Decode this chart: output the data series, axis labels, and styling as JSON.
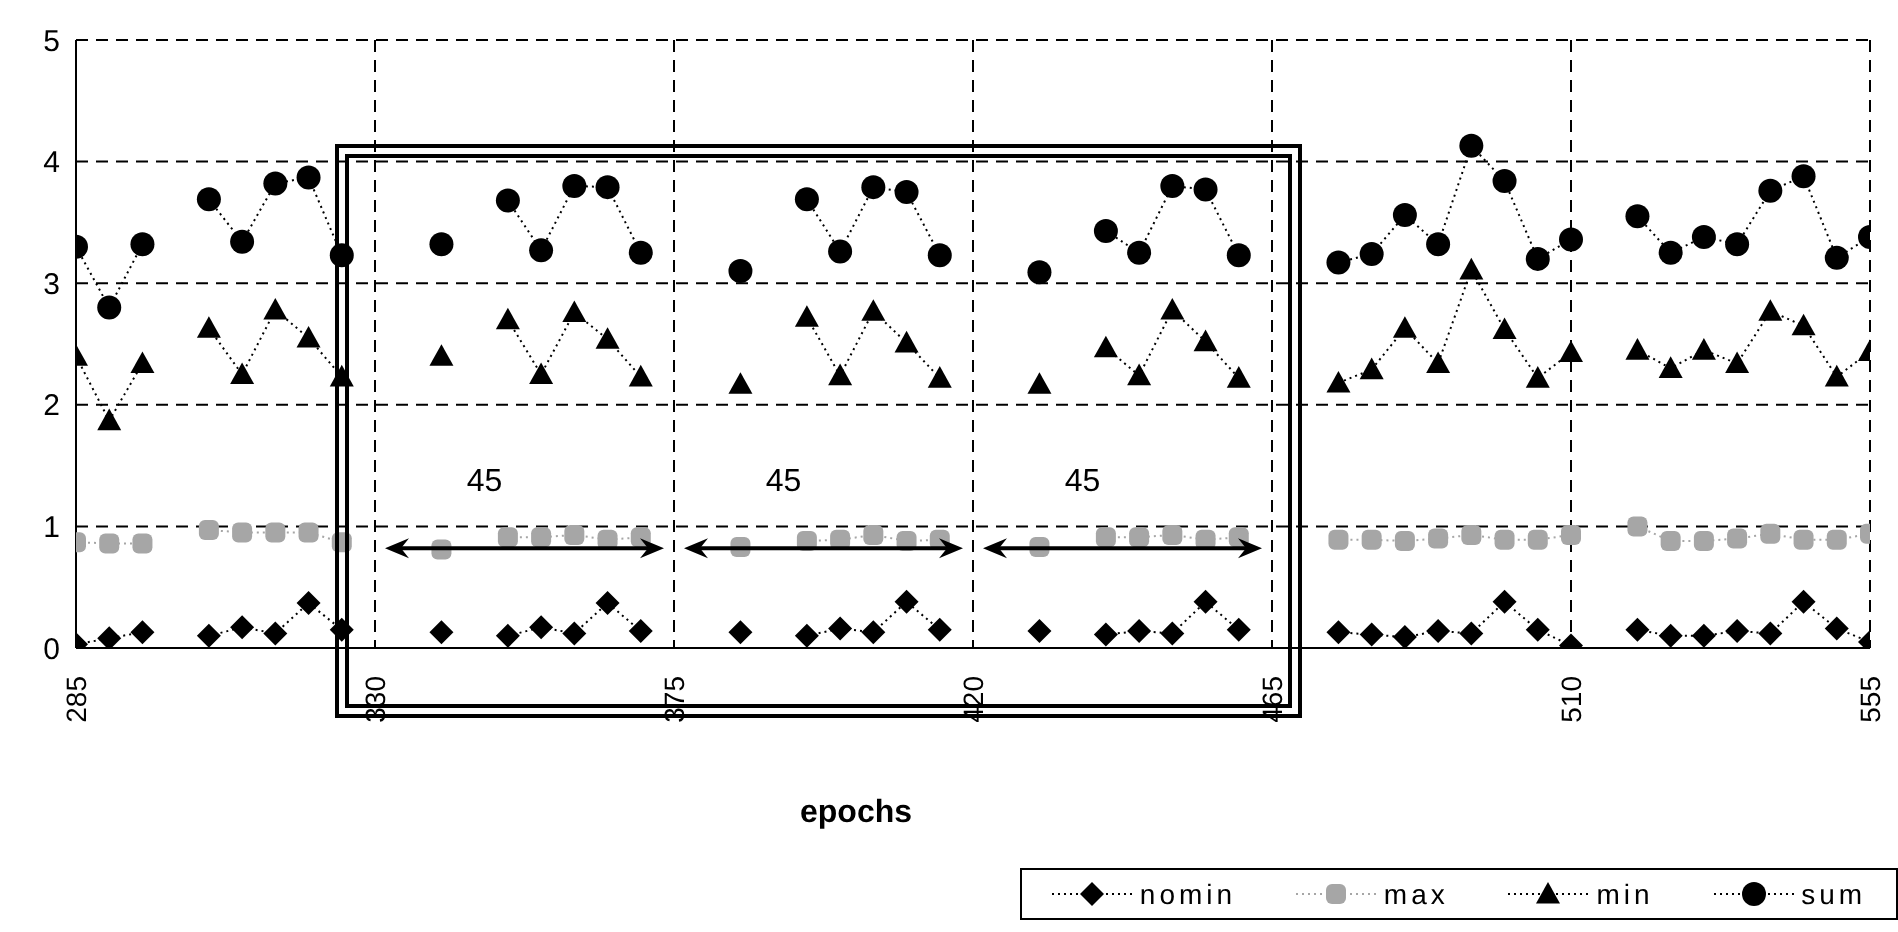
{
  "chart_data": {
    "type": "line",
    "xlabel": "epochs",
    "x": [
      285,
      290,
      295,
      300,
      305,
      310,
      315,
      320,
      325,
      330,
      335,
      340,
      345,
      350,
      355,
      360,
      365,
      370,
      375,
      380,
      385,
      390,
      395,
      400,
      405,
      410,
      415,
      420,
      425,
      430,
      435,
      440,
      445,
      450,
      455,
      460,
      465,
      470,
      475,
      480,
      485,
      490,
      495,
      500,
      505,
      510,
      515,
      520,
      525,
      530,
      535,
      540,
      545,
      550,
      555
    ],
    "series": [
      {
        "name": "nomin",
        "color": "#000000",
        "marker": "diamond",
        "values": [
          0.03,
          0.08,
          0.13,
          null,
          0.1,
          0.17,
          0.12,
          0.37,
          0.15,
          null,
          null,
          0.13,
          null,
          0.1,
          0.17,
          0.12,
          0.37,
          0.14,
          null,
          null,
          0.13,
          null,
          0.1,
          0.16,
          0.13,
          0.38,
          0.15,
          null,
          null,
          0.14,
          null,
          0.11,
          0.14,
          0.12,
          0.38,
          0.15,
          null,
          null,
          0.13,
          0.11,
          0.09,
          0.14,
          0.12,
          0.38,
          0.15,
          0.02,
          null,
          0.15,
          0.1,
          0.1,
          0.14,
          0.12,
          0.38,
          0.16,
          0.05
        ]
      },
      {
        "name": "max",
        "color": "#a6a6a6",
        "marker": "square",
        "values": [
          0.87,
          0.86,
          0.86,
          null,
          0.97,
          0.95,
          0.95,
          0.95,
          0.87,
          null,
          null,
          0.81,
          null,
          0.91,
          0.91,
          0.93,
          0.89,
          0.91,
          null,
          null,
          0.83,
          null,
          0.88,
          0.89,
          0.93,
          0.88,
          0.89,
          null,
          null,
          0.83,
          null,
          0.91,
          0.91,
          0.93,
          0.89,
          0.91,
          null,
          null,
          0.89,
          0.89,
          0.88,
          0.9,
          0.93,
          0.89,
          0.89,
          0.93,
          null,
          1.0,
          0.88,
          0.88,
          0.9,
          0.94,
          0.89,
          0.89,
          0.94
        ]
      },
      {
        "name": "min",
        "color": "#000000",
        "marker": "triangle",
        "values": [
          2.4,
          1.87,
          2.34,
          null,
          2.63,
          2.25,
          2.78,
          2.55,
          2.23,
          null,
          null,
          2.4,
          null,
          2.7,
          2.25,
          2.76,
          2.54,
          2.23,
          null,
          null,
          2.17,
          null,
          2.72,
          2.24,
          2.77,
          2.51,
          2.22,
          null,
          null,
          2.17,
          null,
          2.47,
          2.24,
          2.78,
          2.52,
          2.22,
          null,
          null,
          2.18,
          2.29,
          2.63,
          2.34,
          3.11,
          2.62,
          2.22,
          2.43,
          null,
          2.45,
          2.3,
          2.45,
          2.34,
          2.77,
          2.65,
          2.23,
          2.44
        ]
      },
      {
        "name": "sum",
        "color": "#000000",
        "marker": "circle",
        "values": [
          3.3,
          2.8,
          3.32,
          null,
          3.69,
          3.34,
          3.82,
          3.87,
          3.23,
          null,
          null,
          3.32,
          null,
          3.68,
          3.27,
          3.8,
          3.79,
          3.25,
          null,
          null,
          3.1,
          null,
          3.69,
          3.26,
          3.79,
          3.75,
          3.23,
          null,
          null,
          3.09,
          null,
          3.43,
          3.25,
          3.8,
          3.77,
          3.23,
          null,
          null,
          3.17,
          3.24,
          3.56,
          3.32,
          4.13,
          3.84,
          3.2,
          3.36,
          null,
          3.55,
          3.25,
          3.38,
          3.32,
          3.76,
          3.88,
          3.21,
          3.38
        ]
      }
    ],
    "xlim": [
      285,
      555
    ],
    "xticks": [
      285,
      330,
      375,
      420,
      465,
      510,
      555
    ],
    "ylim": [
      0,
      5
    ],
    "yticks": [
      0,
      1,
      2,
      3,
      4,
      5
    ],
    "grid": true,
    "legend": "bottom right",
    "line_style": "dotted",
    "annotations": [
      "45",
      "45",
      "45"
    ]
  }
}
